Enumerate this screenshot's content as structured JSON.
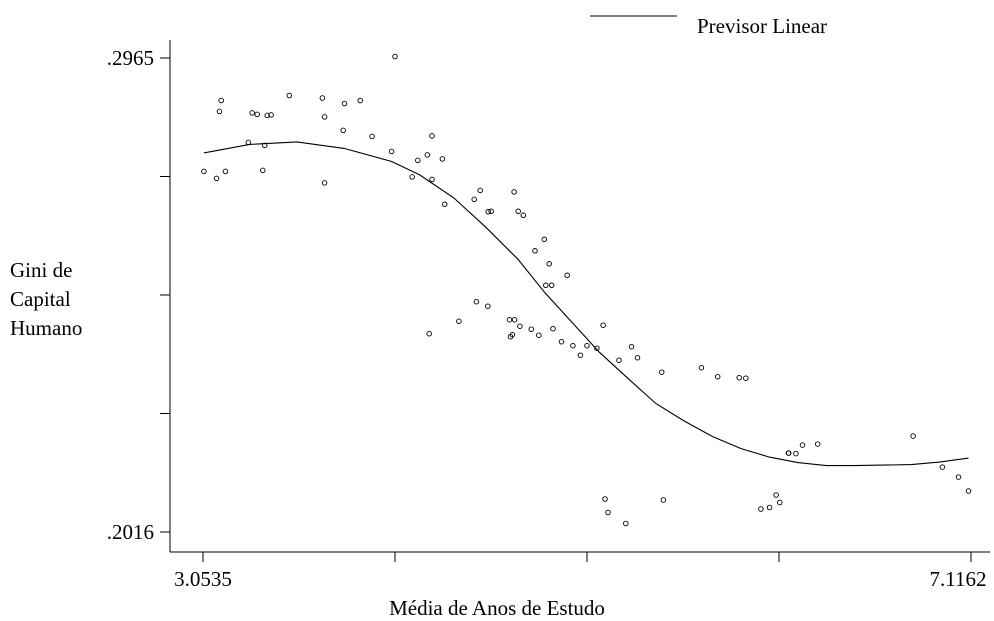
{
  "chart_data": {
    "type": "scatter",
    "legend": [
      {
        "name": "Previsor Linear",
        "style": "line"
      }
    ],
    "legend_position": "top-right",
    "xlabel": "Média de Anos de Estudo",
    "ylabel_lines": [
      "Gini de",
      "Capital",
      "Humano"
    ],
    "xlim": [
      3.0535,
      7.1162
    ],
    "ylim": [
      0.2016,
      0.2965
    ],
    "x_tick_labels": [
      "3.0535",
      "7.1162"
    ],
    "y_tick_labels": [
      ".2965",
      ".2016"
    ],
    "grid": false,
    "points": [
      [
        3.058,
        0.2738
      ],
      [
        3.125,
        0.2724
      ],
      [
        3.172,
        0.2738
      ],
      [
        3.14,
        0.2858
      ],
      [
        3.15,
        0.288
      ],
      [
        3.293,
        0.2796
      ],
      [
        3.314,
        0.2855
      ],
      [
        3.34,
        0.2852
      ],
      [
        3.37,
        0.274
      ],
      [
        3.38,
        0.279
      ],
      [
        3.393,
        0.285
      ],
      [
        3.414,
        0.2851
      ],
      [
        3.51,
        0.289
      ],
      [
        3.685,
        0.2885
      ],
      [
        3.697,
        0.2715
      ],
      [
        3.697,
        0.2847
      ],
      [
        3.795,
        0.282
      ],
      [
        3.802,
        0.2874
      ],
      [
        3.885,
        0.288
      ],
      [
        3.948,
        0.2808
      ],
      [
        4.051,
        0.2778
      ],
      [
        4.069,
        0.2968
      ],
      [
        4.16,
        0.2727
      ],
      [
        4.19,
        0.276
      ],
      [
        4.24,
        0.2771
      ],
      [
        4.25,
        0.2413
      ],
      [
        4.265,
        0.2809
      ],
      [
        4.265,
        0.2722
      ],
      [
        4.32,
        0.2763
      ],
      [
        4.332,
        0.2672
      ],
      [
        4.407,
        0.2438
      ],
      [
        4.488,
        0.2682
      ],
      [
        4.5,
        0.2477
      ],
      [
        4.52,
        0.27
      ],
      [
        4.56,
        0.2468
      ],
      [
        4.562,
        0.2657
      ],
      [
        4.578,
        0.2658
      ],
      [
        4.675,
        0.2441
      ],
      [
        4.68,
        0.2407
      ],
      [
        4.69,
        0.2411
      ],
      [
        4.699,
        0.2697
      ],
      [
        4.702,
        0.2441
      ],
      [
        4.721,
        0.2658
      ],
      [
        4.73,
        0.2428
      ],
      [
        4.748,
        0.265
      ],
      [
        4.79,
        0.2422
      ],
      [
        4.81,
        0.2579
      ],
      [
        4.83,
        0.241
      ],
      [
        4.859,
        0.2602
      ],
      [
        4.867,
        0.251
      ],
      [
        4.885,
        0.2553
      ],
      [
        4.898,
        0.251
      ],
      [
        4.905,
        0.2423
      ],
      [
        4.95,
        0.2397
      ],
      [
        4.98,
        0.253
      ],
      [
        5.01,
        0.2389
      ],
      [
        5.05,
        0.237
      ],
      [
        5.085,
        0.2389
      ],
      [
        5.137,
        0.2384
      ],
      [
        5.17,
        0.243
      ],
      [
        5.18,
        0.2082
      ],
      [
        5.196,
        0.2055
      ],
      [
        5.254,
        0.236
      ],
      [
        5.29,
        0.2033
      ],
      [
        5.32,
        0.2387
      ],
      [
        5.352,
        0.2365
      ],
      [
        5.48,
        0.2336
      ],
      [
        5.489,
        0.208
      ],
      [
        5.69,
        0.2345
      ],
      [
        5.776,
        0.2327
      ],
      [
        5.89,
        0.2325
      ],
      [
        5.925,
        0.2324
      ],
      [
        6.005,
        0.2062
      ],
      [
        6.051,
        0.2065
      ],
      [
        6.085,
        0.209
      ],
      [
        6.105,
        0.2075
      ],
      [
        6.15,
        0.2174
      ],
      [
        6.152,
        0.2174
      ],
      [
        6.19,
        0.2173
      ],
      [
        6.225,
        0.219
      ],
      [
        6.305,
        0.2192
      ],
      [
        6.81,
        0.2208
      ],
      [
        6.965,
        0.2146
      ],
      [
        7.05,
        0.2126
      ],
      [
        7.103,
        0.2098
      ]
    ],
    "fit_line": [
      [
        3.058,
        0.2775
      ],
      [
        3.3,
        0.2792
      ],
      [
        3.55,
        0.2797
      ],
      [
        3.8,
        0.2784
      ],
      [
        4.05,
        0.2758
      ],
      [
        4.2,
        0.2731
      ],
      [
        4.38,
        0.2685
      ],
      [
        4.55,
        0.2626
      ],
      [
        4.72,
        0.2562
      ],
      [
        4.86,
        0.2496
      ],
      [
        5.0,
        0.2438
      ],
      [
        5.15,
        0.2376
      ],
      [
        5.3,
        0.2324
      ],
      [
        5.45,
        0.2273
      ],
      [
        5.6,
        0.2238
      ],
      [
        5.75,
        0.2207
      ],
      [
        5.9,
        0.2183
      ],
      [
        6.05,
        0.2166
      ],
      [
        6.2,
        0.2155
      ],
      [
        6.35,
        0.2149
      ],
      [
        6.5,
        0.2149
      ],
      [
        6.65,
        0.215
      ],
      [
        6.8,
        0.2151
      ],
      [
        6.95,
        0.2156
      ],
      [
        7.103,
        0.2164
      ]
    ]
  }
}
